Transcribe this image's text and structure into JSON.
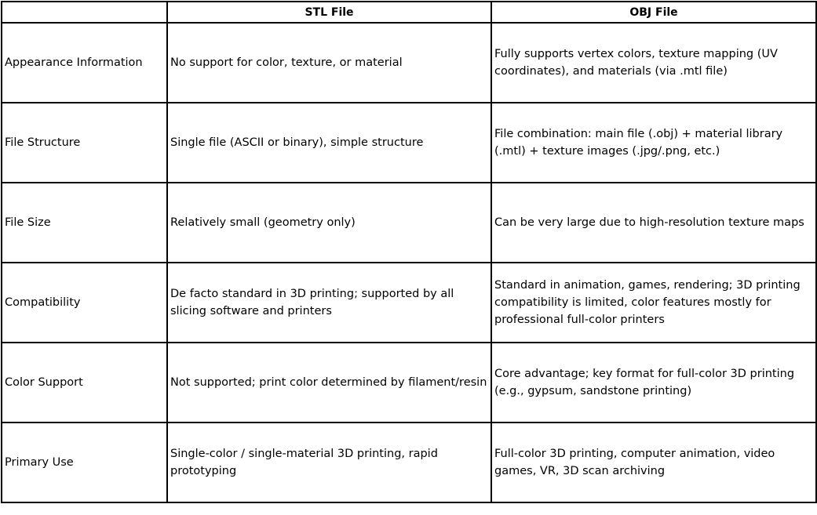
{
  "table": {
    "headers": [
      "",
      "STL File",
      "OBJ File"
    ],
    "rows": [
      {
        "feature": "Appearance Information",
        "stl": "No support for color, texture, or material",
        "obj": "Fully supports vertex colors, texture mapping (UV coordinates), and materials (via .mtl file)"
      },
      {
        "feature": "File Structure",
        "stl": "Single file (ASCII or binary), simple structure",
        "obj": "File combination: main file (.obj) + material library (.mtl) + texture images (.jpg/.png, etc.)"
      },
      {
        "feature": "File Size",
        "stl": "Relatively small (geometry only)",
        "obj": "Can be very large due to high-resolution texture maps"
      },
      {
        "feature": "Compatibility",
        "stl": "De facto standard in 3D printing; supported by all slicing software and printers",
        "obj": "Standard in animation, games, rendering; 3D printing compatibility is limited, color features mostly for professional full-color printers"
      },
      {
        "feature": "Color Support",
        "stl": "Not supported; print color determined by filament/resin",
        "obj": "Core advantage; key format for full-color 3D printing (e.g., gypsum, sandstone printing)"
      },
      {
        "feature": "Primary Use",
        "stl": "Single-color / single-material 3D printing, rapid prototyping",
        "obj": "Full-color 3D printing, computer animation, video games, VR, 3D scan archiving"
      }
    ]
  }
}
